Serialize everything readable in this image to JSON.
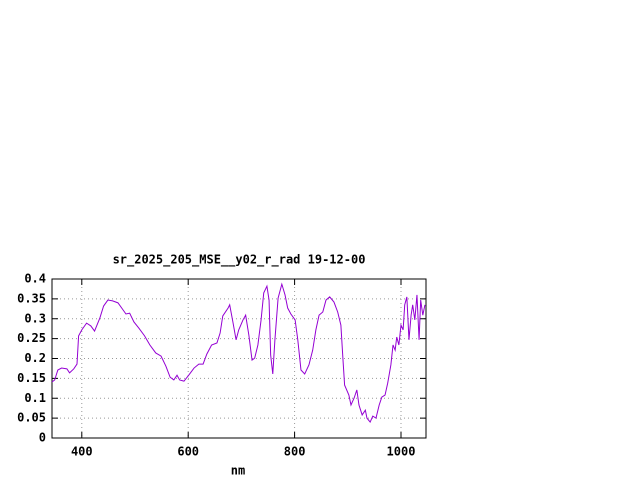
{
  "chart_data": {
    "type": "line",
    "title": "sr_2025_205_MSE__y02_r_rad 19-12-00",
    "x_label": "nm",
    "x": [
      344,
      349,
      355,
      362,
      372,
      377,
      385,
      391,
      394,
      400,
      409,
      417,
      424,
      434,
      441,
      449,
      458,
      468,
      475,
      483,
      490,
      498,
      507,
      518,
      528,
      539,
      549,
      558,
      566,
      573,
      579,
      584,
      592,
      601,
      611,
      620,
      628,
      635,
      644,
      654,
      660,
      665,
      675,
      678,
      684,
      690,
      695,
      703,
      708,
      714,
      720,
      725,
      731,
      737,
      742,
      748,
      752,
      755,
      759,
      763,
      769,
      776,
      782,
      787,
      793,
      801,
      806,
      812,
      819,
      827,
      834,
      840,
      846,
      853,
      859,
      866,
      874,
      881,
      887,
      891,
      894,
      902,
      906,
      912,
      917,
      921,
      927,
      933,
      936,
      942,
      947,
      953,
      959,
      964,
      970,
      975,
      981,
      985,
      989,
      992,
      996,
      1000,
      1004,
      1007,
      1011,
      1015,
      1019,
      1022,
      1026,
      1030,
      1034,
      1037,
      1041,
      1045
    ],
    "series": [
      {
        "color": "#9400d3",
        "values": [
          0.141,
          0.146,
          0.171,
          0.176,
          0.174,
          0.164,
          0.174,
          0.186,
          0.257,
          0.272,
          0.289,
          0.282,
          0.269,
          0.302,
          0.332,
          0.347,
          0.345,
          0.34,
          0.327,
          0.312,
          0.314,
          0.292,
          0.277,
          0.257,
          0.234,
          0.214,
          0.206,
          0.181,
          0.153,
          0.146,
          0.158,
          0.146,
          0.143,
          0.158,
          0.176,
          0.186,
          0.186,
          0.211,
          0.234,
          0.239,
          0.264,
          0.307,
          0.327,
          0.335,
          0.292,
          0.247,
          0.272,
          0.297,
          0.309,
          0.259,
          0.196,
          0.201,
          0.234,
          0.297,
          0.365,
          0.382,
          0.347,
          0.209,
          0.161,
          0.247,
          0.352,
          0.387,
          0.36,
          0.327,
          0.312,
          0.297,
          0.247,
          0.171,
          0.161,
          0.184,
          0.221,
          0.272,
          0.309,
          0.317,
          0.347,
          0.355,
          0.342,
          0.317,
          0.284,
          0.196,
          0.133,
          0.108,
          0.083,
          0.101,
          0.121,
          0.083,
          0.058,
          0.07,
          0.05,
          0.04,
          0.055,
          0.05,
          0.083,
          0.103,
          0.108,
          0.138,
          0.184,
          0.234,
          0.221,
          0.254,
          0.234,
          0.284,
          0.272,
          0.335,
          0.355,
          0.247,
          0.309,
          0.335,
          0.297,
          0.36,
          0.247,
          0.347,
          0.309,
          0.335
        ]
      }
    ],
    "xlim": [
      344,
      1047
    ],
    "ylim": [
      0,
      0.4
    ],
    "xticks": [
      400,
      600,
      800,
      1000
    ],
    "yticks": [
      0,
      0.05,
      0.1,
      0.15,
      0.2,
      0.25,
      0.3,
      0.35,
      0.4
    ],
    "grid": true
  }
}
